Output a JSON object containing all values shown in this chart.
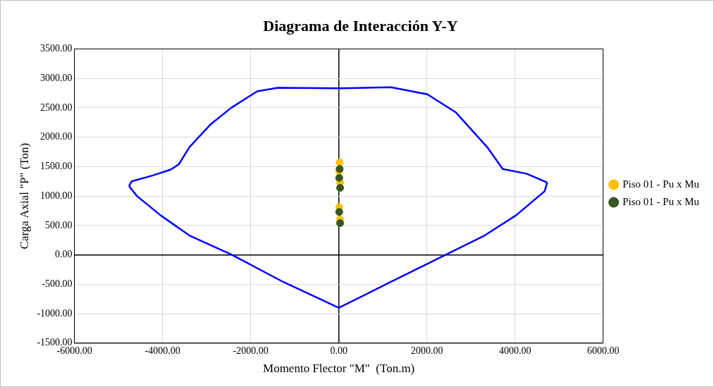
{
  "chart_data": {
    "type": "scatter",
    "title": "Diagrama de Interacción Y-Y",
    "xlabel": "Momento Flector \"M\"  (Ton.m)",
    "ylabel": "Carga Axial \"P\" (Ton)",
    "xlim": [
      -6000,
      6000
    ],
    "ylim": [
      -1500,
      3500
    ],
    "xticks": [
      {
        "value": -6000,
        "label": "-6000.00"
      },
      {
        "value": -4000,
        "label": "-4000.00"
      },
      {
        "value": -2000,
        "label": "-2000.00"
      },
      {
        "value": 0,
        "label": "0.00"
      },
      {
        "value": 2000,
        "label": "2000.00"
      },
      {
        "value": 4000,
        "label": "4000.00"
      },
      {
        "value": 6000,
        "label": "6000.00"
      }
    ],
    "yticks": [
      {
        "value": -1500,
        "label": "-1500.00"
      },
      {
        "value": -1000,
        "label": "-1000.00"
      },
      {
        "value": -500,
        "label": "-500.00"
      },
      {
        "value": 0,
        "label": "0.00"
      },
      {
        "value": 500,
        "label": "500.00"
      },
      {
        "value": 1000,
        "label": "1000.00"
      },
      {
        "value": 1500,
        "label": "1500.00"
      },
      {
        "value": 2000,
        "label": "2000.00"
      },
      {
        "value": 2500,
        "label": "2500.00"
      },
      {
        "value": 3000,
        "label": "3000.00"
      },
      {
        "value": 3500,
        "label": "3500.00"
      }
    ],
    "grid": true,
    "legend": "right",
    "marker": "circle",
    "series": [
      {
        "type": "line",
        "color": "#0000ff",
        "marker": "none",
        "x": [
          -4760,
          -4700,
          -4220,
          -3810,
          -3630,
          -3390,
          -2920,
          -2440,
          -1850,
          -1380,
          0,
          1180,
          2010,
          2660,
          3370,
          3720,
          4260,
          4730
        ],
        "values": [
          1170,
          1250,
          1350,
          1450,
          1540,
          1830,
          2210,
          2500,
          2780,
          2840,
          2830,
          2850,
          2730,
          2420,
          1830,
          1460,
          1380,
          1230
        ]
      },
      {
        "type": "line",
        "color": "#0000ff",
        "marker": "none",
        "x": [
          -4760,
          -4580,
          -4040,
          -3390,
          -2420,
          -1260,
          0,
          1180,
          2420,
          3310,
          4020,
          4670,
          4730
        ],
        "values": [
          1170,
          1000,
          670,
          330,
          0,
          -460,
          -900,
          -460,
          0,
          330,
          670,
          1080,
          1230
        ]
      },
      {
        "name": "Piso 01 - Pu x Mu",
        "color": "#ffc000",
        "x": [
          20,
          10,
          30,
          10,
          30
        ],
        "values": [
          1570,
          1420,
          1230,
          810,
          600
        ]
      },
      {
        "name": "Piso 01 - Pu x Mu",
        "color": "#375623",
        "x": [
          20,
          10,
          30,
          10,
          30
        ],
        "values": [
          1460,
          1310,
          1140,
          730,
          540
        ]
      }
    ]
  }
}
